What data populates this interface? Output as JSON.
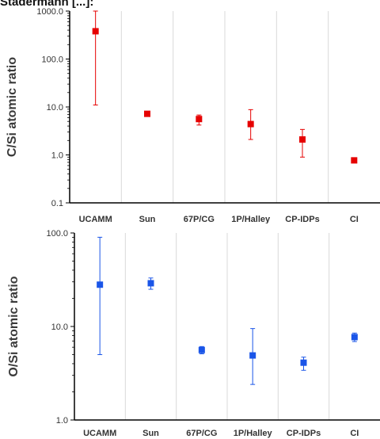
{
  "caption": "Stadermann [...]:",
  "chart_data": [
    {
      "type": "scatter",
      "ylabel": "C/Si atomic ratio",
      "yscale": "log",
      "ylim": [
        0.1,
        1000
      ],
      "yticks": [
        "0.1",
        "1.0",
        "10.0",
        "100.0",
        "1000.0"
      ],
      "categories": [
        "UCAMM",
        "Sun",
        "67P/CG",
        "1P/Halley",
        "CP-IDPs",
        "CI"
      ],
      "color": "#e60000",
      "values": [
        380,
        7.2,
        5.6,
        4.4,
        2.1,
        0.77
      ],
      "err_low": [
        11,
        6.6,
        4.2,
        2.1,
        0.9,
        0.72
      ],
      "err_high": [
        1000,
        7.8,
        6.8,
        8.8,
        3.4,
        0.82
      ]
    },
    {
      "type": "scatter",
      "ylabel": "O/Si atomic ratio",
      "yscale": "log",
      "ylim": [
        1,
        100
      ],
      "yticks": [
        "1.0",
        "10.0",
        "100.0"
      ],
      "categories": [
        "UCAMM",
        "Sun",
        "67P/CG",
        "1P/Halley",
        "CP-IDPs",
        "CI"
      ],
      "color": "#1a55e8",
      "values": [
        28,
        29,
        5.6,
        4.9,
        4.1,
        7.7
      ],
      "err_low": [
        5,
        25,
        5.1,
        2.4,
        3.4,
        6.9
      ],
      "err_high": [
        90,
        33,
        6.1,
        9.5,
        4.7,
        8.5
      ]
    }
  ]
}
